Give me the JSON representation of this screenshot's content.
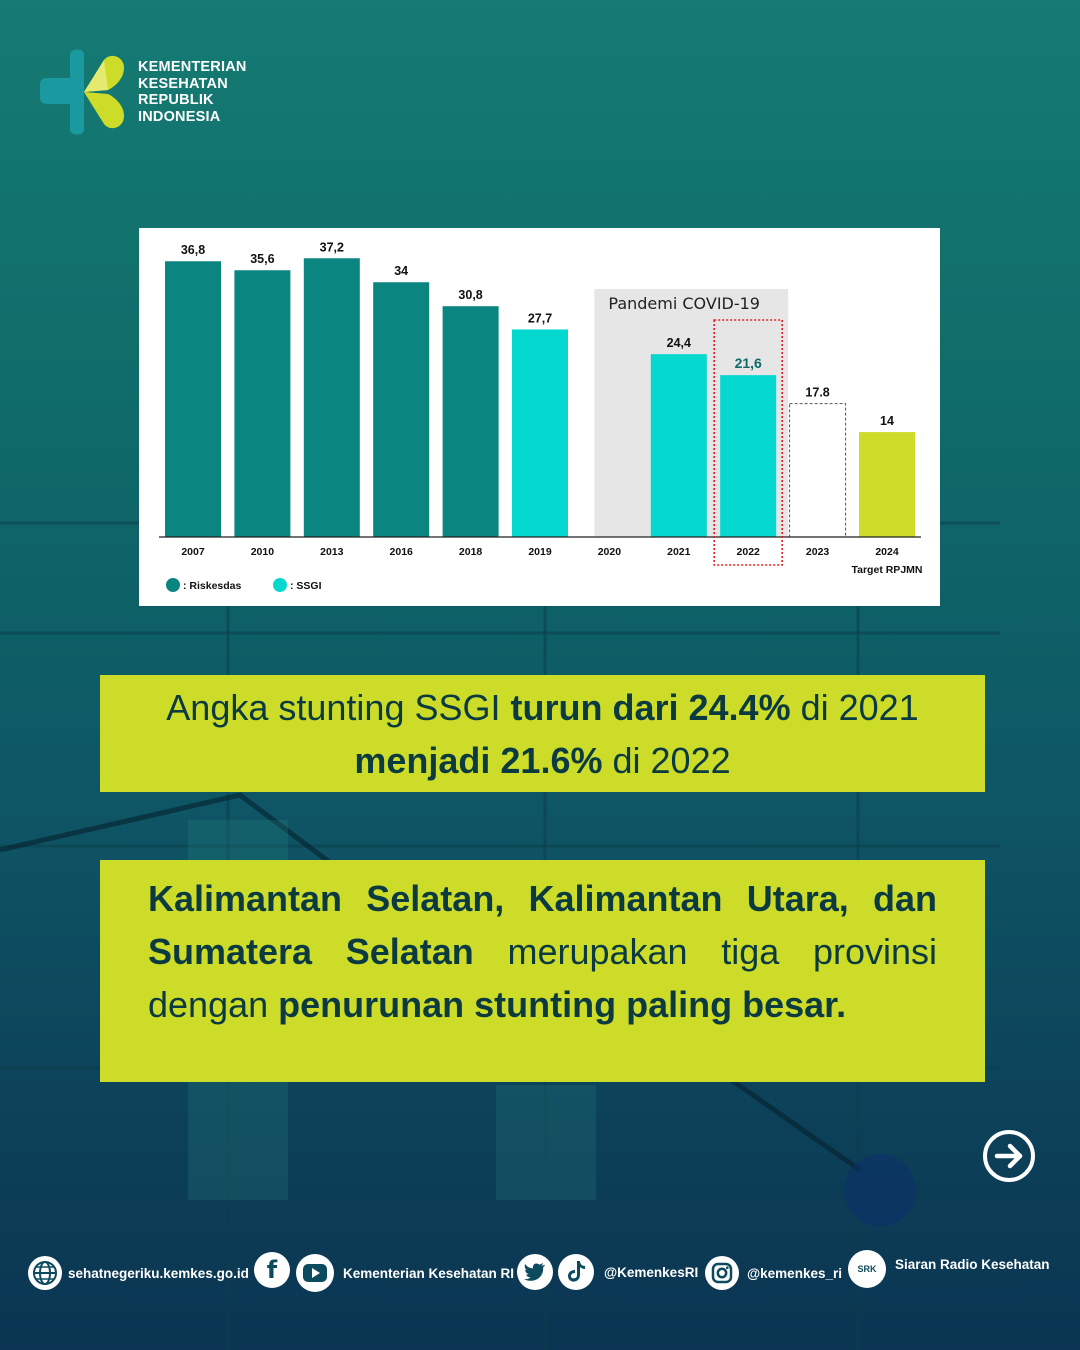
{
  "brand": {
    "name_lines": [
      "KEMENTERIAN",
      "KESEHATAN",
      "REPUBLIK",
      "INDONESIA"
    ],
    "colors": {
      "teal": "#1a9aa0",
      "lime": "#cddc29",
      "dark": "#0b3a40"
    }
  },
  "chart_data": {
    "type": "bar",
    "categories": [
      "2007",
      "2010",
      "2013",
      "2016",
      "2018",
      "2019",
      "2020",
      "2021",
      "2022",
      "2023",
      "2024"
    ],
    "values": [
      36.8,
      35.6,
      37.2,
      34,
      30.8,
      27.7,
      null,
      24.4,
      21.6,
      17.8,
      14
    ],
    "value_labels": [
      "36,8",
      "35,6",
      "37,2",
      "34",
      "30,8",
      "27,7",
      "",
      "24,4",
      "21,6",
      "17.8",
      "14"
    ],
    "bar_sources": [
      "riskesdas",
      "riskesdas",
      "riskesdas",
      "riskesdas",
      "riskesdas",
      "ssgi",
      "",
      "ssgi",
      "ssgi",
      "target",
      "target-rpjmn"
    ],
    "colors": {
      "riskesdas": "#0b8580",
      "ssgi": "#04d8cf",
      "target-rpjmn": "#cddc29",
      "highlight-label": "#0b6b6b"
    },
    "ylim": [
      0,
      40
    ],
    "highlight_category": "2022",
    "shaded_region": {
      "categories": [
        "2020",
        "2021",
        "2022"
      ],
      "label": "Pandemi COVID-19"
    },
    "extra_tick_label": {
      "category": "2024",
      "text": "Target RPJMN"
    },
    "legend": [
      {
        "label": ": Riskesdas",
        "color": "#0b8580"
      },
      {
        "label": ": SSGI",
        "color": "#04d8cf"
      }
    ],
    "legend_position": "bottom-left",
    "grid": false
  },
  "headline": {
    "t1": "Angka stunting SSGI ",
    "t2": "turun dari 24.4%",
    "t3": " di 2021",
    "t4": "menjadi 21.6%",
    "t5": " di 2022"
  },
  "body": {
    "b1": "Kalimantan Selatan, Kalimantan Utara, dan Sumatera Selatan",
    "t2": " merupakan tiga provinsi dengan ",
    "b3": "penurunan stunting paling besar."
  },
  "next_button": {
    "icon": "arrow-right-icon"
  },
  "footer": {
    "website": "sehatnegeriku.kemkes.go.id",
    "channel": "Kementerian Kesehatan RI",
    "twitter_tiktok": "@KemenkesRI",
    "instagram": "@kemenkes_ri",
    "radio": "Siaran Radio Kesehatan",
    "radio_logo": "SRK"
  }
}
